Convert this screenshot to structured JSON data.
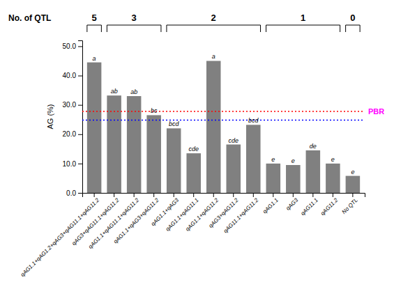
{
  "chart_data": {
    "type": "bar",
    "categories": [
      "qAG1.1+qAG1.2+qAG3+qAG11.1+qAG11.2",
      "qAG3+qAG11.1+qAG11.2",
      "qAG1.1+qAG11.1+qAG11.2",
      "qAG1.1+qAG3+qAG11.2",
      "qAG1.1+qAG3",
      "qAG1.1+qAG11.1",
      "qAG1.1+qAG11.2",
      "qAG3+qAG11.2",
      "qAG11.1+qAG11.2",
      "qAG1.1",
      "qAG3",
      "qAG11.1",
      "qAG11.2",
      "No QTL"
    ],
    "values": [
      44.5,
      33.2,
      33.0,
      26.5,
      22.0,
      13.5,
      45.0,
      16.5,
      23.2,
      10.0,
      9.5,
      14.5,
      10.0,
      5.8
    ],
    "color": "#808080",
    "bar_labels": [
      "a",
      "ab",
      "ab",
      "bc",
      "bcd",
      "cde",
      "a",
      "cde",
      "bcd",
      "e",
      "e",
      "de",
      "e",
      "e"
    ],
    "ylabel": "AG (%)",
    "ylim": [
      0,
      52
    ],
    "yticks": [
      {
        "value": 0,
        "label": "0.0"
      },
      {
        "value": 10,
        "label": "10.0"
      },
      {
        "value": 20,
        "label": "20.0"
      },
      {
        "value": 30,
        "label": "30.0"
      },
      {
        "value": 40,
        "label": "40.0"
      },
      {
        "value": 50,
        "label": "50.0"
      }
    ],
    "lines": [
      {
        "value": 27.8,
        "color": "red",
        "line_style": "dotted",
        "label": "PBR",
        "label_color": "#FF00FF"
      },
      {
        "value": 24.8,
        "color": "blue",
        "line_style": "dotted"
      }
    ],
    "groups_title": "No. of QTL",
    "groups": [
      {
        "label": "5",
        "bars": [
          0
        ]
      },
      {
        "label": "3",
        "bars": [
          1,
          2,
          3
        ]
      },
      {
        "label": "2",
        "bars": [
          4,
          5,
          6,
          7,
          8
        ]
      },
      {
        "label": "1",
        "bars": [
          9,
          10,
          11,
          12
        ]
      },
      {
        "label": "0",
        "bars": [
          13
        ]
      }
    ]
  }
}
